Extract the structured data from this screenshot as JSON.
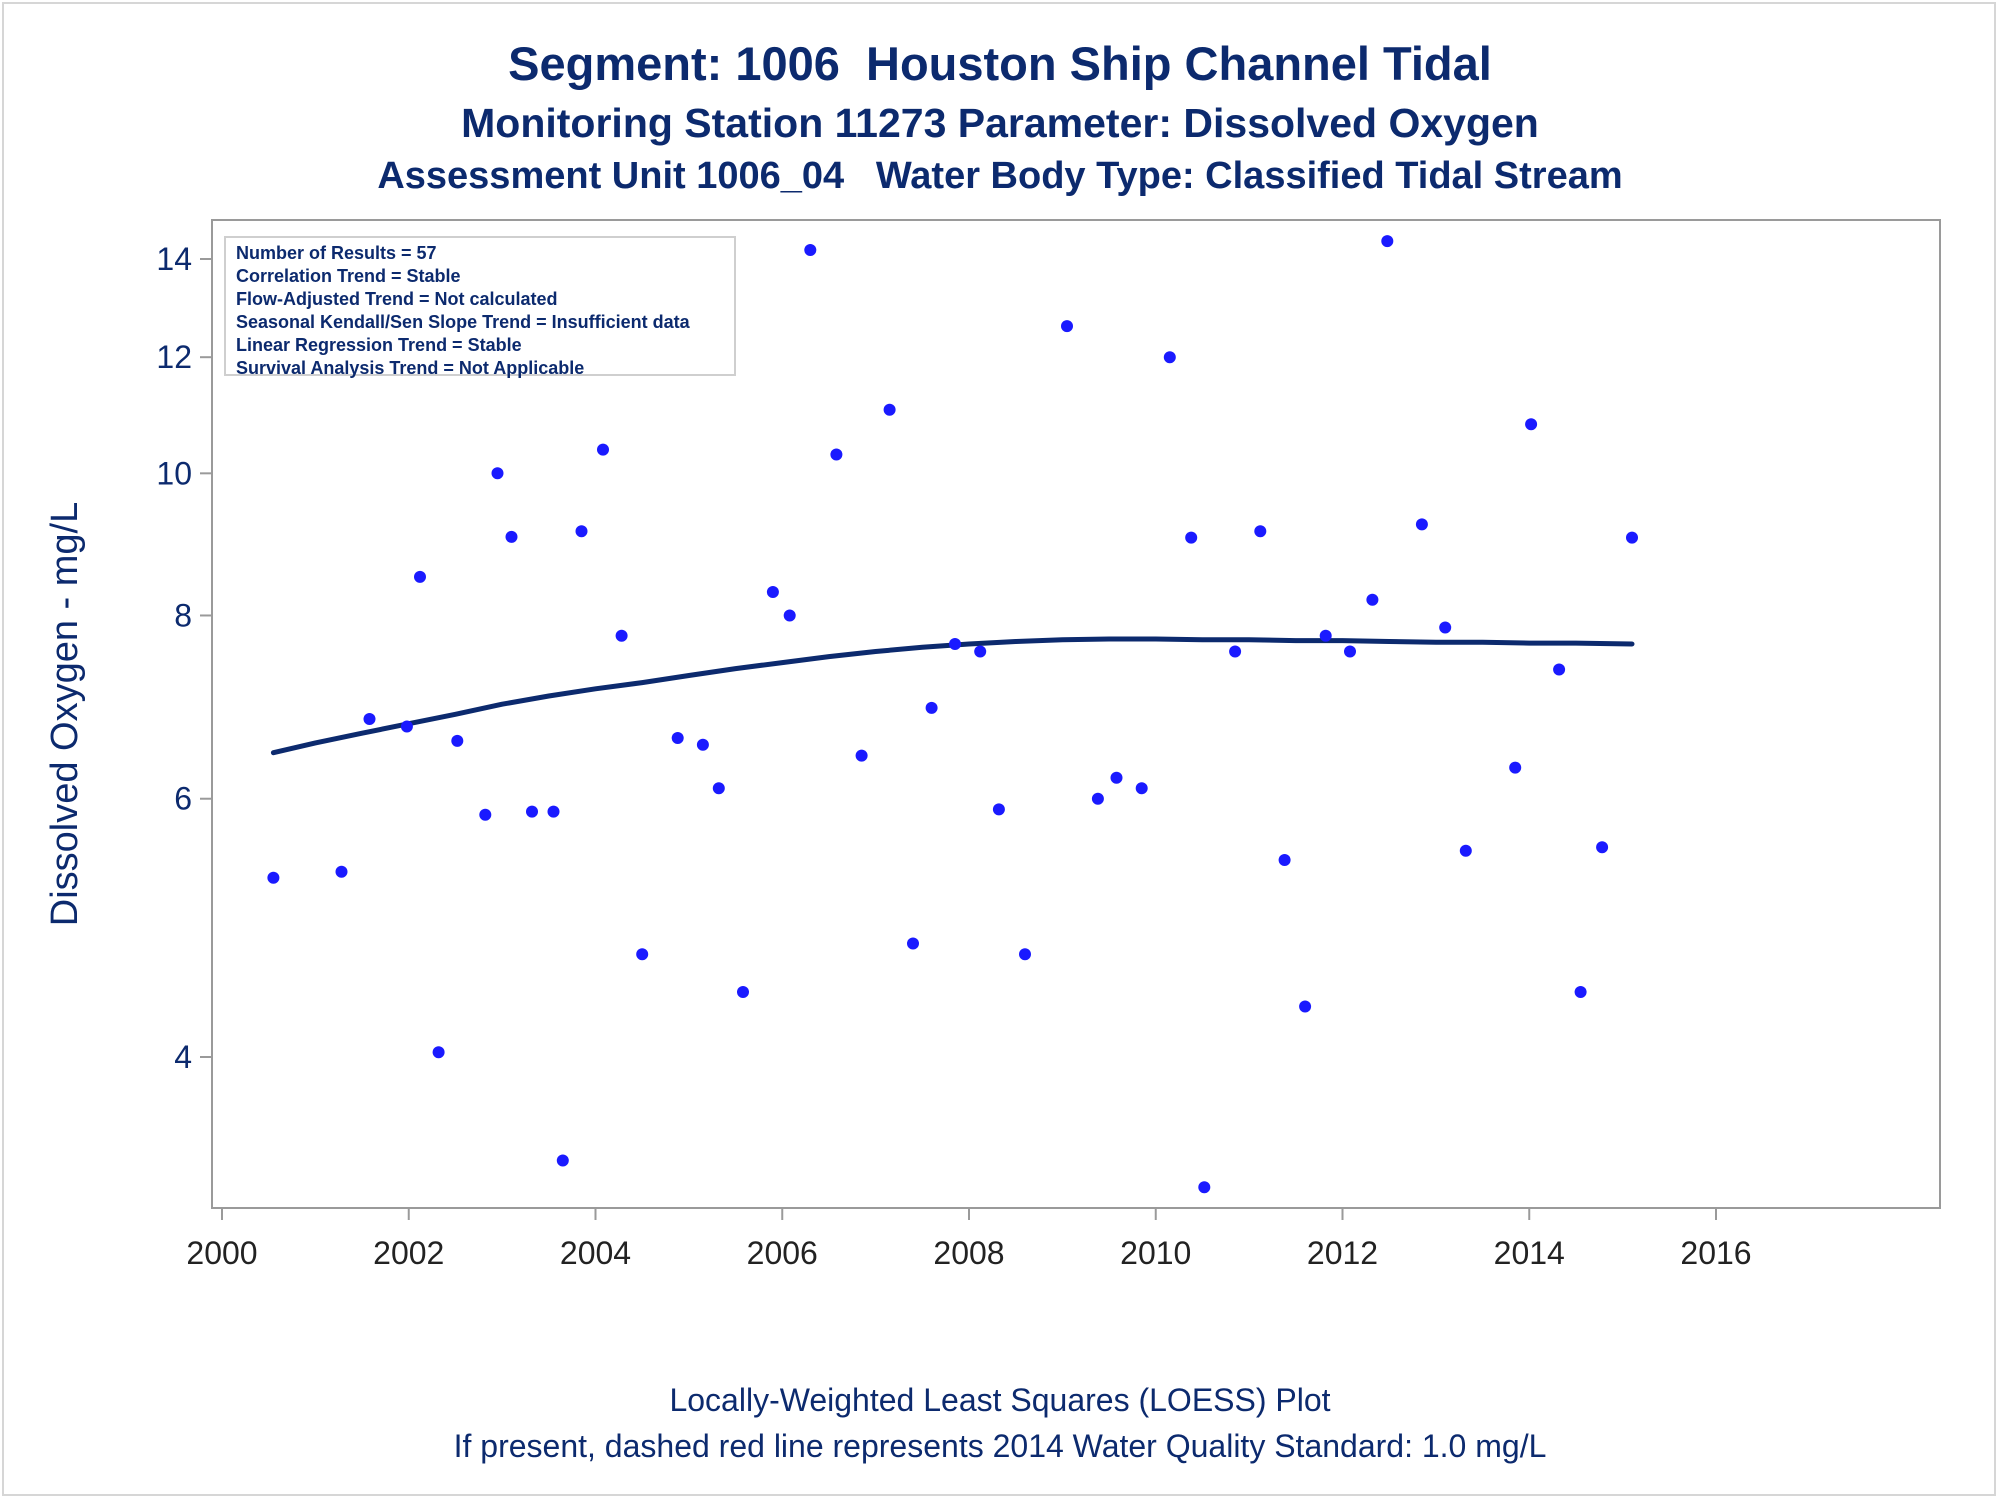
{
  "titles": {
    "line1": "Segment: 1006  Houston Ship Channel Tidal",
    "line2": "Monitoring Station 11273 Parameter: Dissolved Oxygen",
    "line3": "Assessment Unit 1006_04   Water Body Type: Classified Tidal Stream"
  },
  "footnotes": {
    "line1": "Locally-Weighted Least Squares (LOESS) Plot",
    "line2": "If present, dashed red line represents 2014 Water Quality Standard: 1.0 mg/L"
  },
  "stats": [
    "Number of Results = 57",
    "Correlation Trend = Stable",
    "Flow-Adjusted Trend = Not calculated",
    "Seasonal Kendall/Sen Slope Trend = Insufficient data",
    "Linear Regression Trend = Stable",
    "Survival Analysis Trend = Not Applicable"
  ],
  "colors": {
    "points": "#1a1aff",
    "loess": "#0c2a6e",
    "text": "#0c2a6e",
    "axis": "#9a9a9a"
  },
  "chart_data": {
    "type": "scatter",
    "xlabel": "",
    "ylabel": "Dissolved Oxygen - mg/L",
    "xlim": [
      2000,
      2016
    ],
    "ylim": [
      3.05,
      14.7
    ],
    "y_scale": "log",
    "x_ticks": [
      2000,
      2002,
      2004,
      2006,
      2008,
      2010,
      2012,
      2014,
      2016
    ],
    "y_ticks": [
      4,
      6,
      8,
      10,
      12,
      14
    ],
    "grid": false,
    "series": [
      {
        "type": "scatter",
        "points": [
          [
            2000.55,
            5.3
          ],
          [
            2001.28,
            5.35
          ],
          [
            2001.58,
            6.8
          ],
          [
            2001.98,
            6.72
          ],
          [
            2002.12,
            8.5
          ],
          [
            2002.32,
            4.03
          ],
          [
            2002.52,
            6.57
          ],
          [
            2002.82,
            5.85
          ],
          [
            2002.95,
            10.0
          ],
          [
            2003.1,
            9.05
          ],
          [
            2003.32,
            5.88
          ],
          [
            2003.55,
            5.88
          ],
          [
            2003.65,
            3.4
          ],
          [
            2003.85,
            9.13
          ],
          [
            2004.08,
            10.38
          ],
          [
            2004.28,
            7.75
          ],
          [
            2004.5,
            4.7
          ],
          [
            2004.88,
            6.6
          ],
          [
            2005.15,
            6.53
          ],
          [
            2005.32,
            6.1
          ],
          [
            2005.58,
            4.43
          ],
          [
            2005.9,
            8.3
          ],
          [
            2006.08,
            8.0
          ],
          [
            2006.3,
            14.2
          ],
          [
            2006.58,
            10.3
          ],
          [
            2006.85,
            6.42
          ],
          [
            2007.15,
            11.05
          ],
          [
            2007.4,
            4.78
          ],
          [
            2007.6,
            6.92
          ],
          [
            2007.85,
            7.65
          ],
          [
            2008.12,
            7.56
          ],
          [
            2008.32,
            5.9
          ],
          [
            2008.6,
            4.7
          ],
          [
            2009.05,
            12.6
          ],
          [
            2009.38,
            6.0
          ],
          [
            2009.58,
            6.2
          ],
          [
            2009.85,
            6.1
          ],
          [
            2010.15,
            12.0
          ],
          [
            2010.38,
            9.04
          ],
          [
            2010.52,
            3.26
          ],
          [
            2010.85,
            7.56
          ],
          [
            2011.12,
            9.13
          ],
          [
            2011.38,
            5.45
          ],
          [
            2011.6,
            4.33
          ],
          [
            2011.82,
            7.75
          ],
          [
            2012.08,
            7.56
          ],
          [
            2012.32,
            8.2
          ],
          [
            2012.48,
            14.4
          ],
          [
            2012.85,
            9.23
          ],
          [
            2013.1,
            7.85
          ],
          [
            2013.32,
            5.53
          ],
          [
            2013.85,
            6.3
          ],
          [
            2014.02,
            10.8
          ],
          [
            2014.32,
            7.35
          ],
          [
            2014.55,
            4.43
          ],
          [
            2014.78,
            5.56
          ],
          [
            2015.1,
            9.04
          ]
        ]
      },
      {
        "type": "line",
        "points": [
          [
            2000.55,
            6.45
          ],
          [
            2001.0,
            6.55
          ],
          [
            2001.5,
            6.65
          ],
          [
            2002.0,
            6.75
          ],
          [
            2002.5,
            6.85
          ],
          [
            2003.0,
            6.96
          ],
          [
            2003.5,
            7.05
          ],
          [
            2004.0,
            7.13
          ],
          [
            2004.5,
            7.2
          ],
          [
            2005.0,
            7.28
          ],
          [
            2005.5,
            7.36
          ],
          [
            2006.0,
            7.43
          ],
          [
            2006.5,
            7.5
          ],
          [
            2007.0,
            7.56
          ],
          [
            2007.5,
            7.61
          ],
          [
            2008.0,
            7.65
          ],
          [
            2008.5,
            7.68
          ],
          [
            2009.0,
            7.7
          ],
          [
            2009.5,
            7.71
          ],
          [
            2010.0,
            7.71
          ],
          [
            2010.5,
            7.7
          ],
          [
            2011.0,
            7.7
          ],
          [
            2011.5,
            7.69
          ],
          [
            2012.0,
            7.69
          ],
          [
            2012.5,
            7.68
          ],
          [
            2013.0,
            7.67
          ],
          [
            2013.5,
            7.67
          ],
          [
            2014.0,
            7.66
          ],
          [
            2014.5,
            7.66
          ],
          [
            2015.1,
            7.65
          ]
        ]
      }
    ]
  }
}
